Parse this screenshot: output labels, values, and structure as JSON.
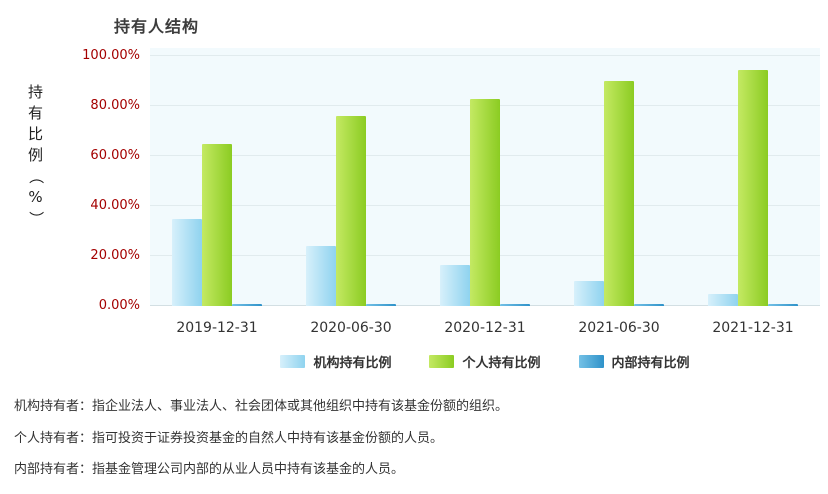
{
  "chart_data": {
    "type": "bar",
    "title": "持有人结构",
    "ylabel": "持有比例（%）",
    "xlabel": "",
    "categories": [
      "2019-12-31",
      "2020-06-30",
      "2020-12-31",
      "2021-06-30",
      "2021-12-31"
    ],
    "series": [
      {
        "key": "institution",
        "name": "机构持有比例",
        "color": "#a6ddf3",
        "color_light": "#d7f0fb",
        "color_dark": "#8fd3ef",
        "values": [
          35.0,
          24.0,
          16.5,
          10.0,
          5.0
        ]
      },
      {
        "key": "individual",
        "name": "个人持有比例",
        "color": "#9ed93c",
        "color_light": "#c4e963",
        "color_dark": "#8bcc22",
        "values": [
          65.0,
          76.0,
          83.0,
          90.0,
          94.5
        ]
      },
      {
        "key": "internal",
        "name": "内部持有比例",
        "color": "#3fa0d8",
        "color_light": "#74c1e6",
        "color_dark": "#2f92c9",
        "values": [
          0.5,
          0.5,
          0.5,
          0.5,
          0.5
        ]
      }
    ],
    "y_ticks": [
      {
        "value": 0,
        "label": "0.00%"
      },
      {
        "value": 20,
        "label": "20.00%"
      },
      {
        "value": 40,
        "label": "40.00%"
      },
      {
        "value": 60,
        "label": "60.00%"
      },
      {
        "value": 80,
        "label": "80.00%"
      },
      {
        "value": 100,
        "label": "100.00%"
      }
    ],
    "ylim": [
      0,
      100
    ],
    "grid": true,
    "legend_position": "bottom"
  },
  "notes": [
    {
      "term": "机构持有者：",
      "text": "指企业法人、事业法人、社会团体或其他组织中持有该基金份额的组织。"
    },
    {
      "term": "个人持有者：",
      "text": "指可投资于证券投资基金的自然人中持有该基金份额的人员。"
    },
    {
      "term": "内部持有者：",
      "text": "指基金管理公司内部的从业人员中持有该基金的人员。"
    }
  ],
  "colors": {
    "tick_label": "#a40000",
    "plot_bg": "#f2fafd",
    "gridline": "#e1ebee"
  }
}
